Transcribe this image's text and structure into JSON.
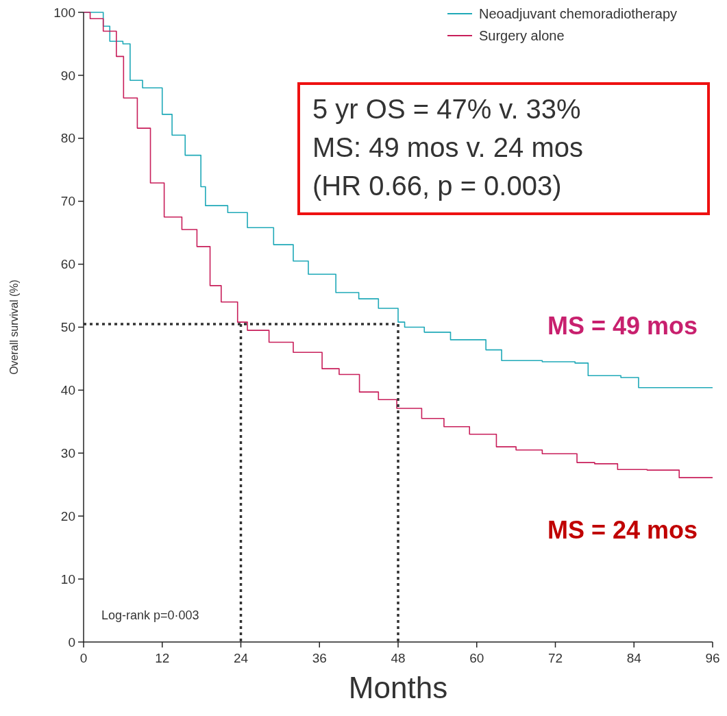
{
  "chart_data": {
    "type": "step",
    "xlabel": "Months",
    "ylabel": "Overall survival (%)",
    "xlim": [
      0,
      96
    ],
    "ylim": [
      0,
      100
    ],
    "xticks": [
      0,
      12,
      24,
      36,
      48,
      60,
      72,
      84,
      96
    ],
    "yticks": [
      0,
      10,
      20,
      30,
      40,
      50,
      60,
      70,
      80,
      90,
      100
    ],
    "legend": "top right",
    "grid": false,
    "marker": "none",
    "series": [
      {
        "name": "Neoadjuvant chemoradiotherapy",
        "color": "#1fa9b8",
        "x": [
          0,
          2.5,
          3,
          4,
          6,
          7.1,
          9,
          12,
          13.5,
          15.5,
          17.9,
          18.6,
          22,
          25,
          29,
          32,
          34.3,
          38.5,
          42,
          45,
          48,
          49,
          52,
          56,
          61.4,
          63.8,
          70,
          75,
          77,
          82,
          84.7,
          96
        ],
        "values": [
          100,
          100,
          97.8,
          95.4,
          95,
          89.2,
          88,
          83.8,
          80.5,
          77.3,
          72.3,
          69.3,
          68.2,
          65.8,
          63.1,
          60.5,
          58.4,
          55.5,
          54.5,
          53,
          50.8,
          50,
          49.2,
          48,
          46.4,
          44.7,
          44.5,
          44.3,
          42.3,
          42,
          40.4,
          40.4
        ]
      },
      {
        "name": "Surgery alone",
        "color": "#c81e5a",
        "x": [
          0,
          1,
          3,
          5,
          6.1,
          8.2,
          10.2,
          12.3,
          15,
          17.3,
          19.3,
          21,
          23.5,
          25,
          28.3,
          32,
          36.4,
          39,
          42.1,
          45,
          47.8,
          51.6,
          55,
          58.9,
          63,
          66,
          70,
          75.3,
          78,
          81.5,
          86,
          90.9,
          96
        ],
        "values": [
          100,
          99,
          97,
          93,
          86.4,
          81.6,
          72.9,
          67.5,
          65.5,
          62.8,
          56.6,
          54,
          50.8,
          49.5,
          47.6,
          46,
          43.4,
          42.5,
          39.7,
          38.5,
          37.1,
          35.5,
          34.2,
          33,
          31,
          30.5,
          29.9,
          28.5,
          28.3,
          27.4,
          27.3,
          26.1,
          26.1
        ]
      },
      {
        "type": "line",
        "color": "#333333",
        "line_style": "dotted",
        "x": [
          0,
          48,
          48
        ],
        "values": [
          50.5,
          50.5,
          0
        ]
      },
      {
        "type": "line",
        "color": "#333333",
        "line_style": "dotted",
        "x": [
          24,
          24
        ],
        "values": [
          50.5,
          0
        ]
      }
    ],
    "annotations": [
      "5 yr OS = 47% v. 33%",
      "MS: 49 mos v. 24 mos",
      "(HR 0.66, p = 0.003)",
      "MS = 49 mos",
      "MS = 24 mos",
      "Log-rank p=0·003"
    ]
  }
}
